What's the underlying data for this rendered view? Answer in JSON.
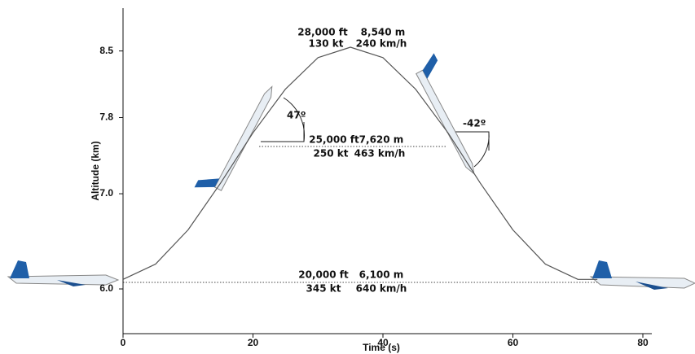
{
  "chart_data": {
    "type": "line",
    "xlabel": "Time (s)",
    "ylabel": "Altitude (km)",
    "x": [
      0,
      5,
      10,
      15,
      20,
      25,
      30,
      35,
      40,
      45,
      50,
      55,
      60,
      65,
      70,
      73
    ],
    "series": [
      {
        "color": "#555555",
        "values": [
          6.1,
          6.26,
          6.62,
          7.11,
          7.64,
          8.1,
          8.43,
          8.54,
          8.43,
          8.1,
          7.64,
          7.11,
          6.62,
          6.26,
          6.1,
          6.1
        ]
      }
    ],
    "xlim": [
      0,
      80
    ],
    "xticks": [
      0,
      20,
      40,
      60,
      80
    ],
    "ylim": [
      5.53,
      8.95
    ],
    "yticks": [
      {
        "value": 6,
        "label": "6.0"
      },
      {
        "value": 7,
        "label": "7.0"
      },
      7.8,
      8.5
    ],
    "annotations": {
      "top": [
        "28,000 ft",
        "8,540 m",
        "130 kt",
        "240 km/h"
      ],
      "middle": [
        "25,000 ft",
        "7,620 m",
        "250 kt",
        "463 km/h"
      ],
      "bottom": [
        "20,000 ft",
        "6,100 m",
        "345 kt",
        "640 km/h"
      ],
      "pull_up_angle": "47º",
      "pull_out_angle": "-42º"
    }
  }
}
